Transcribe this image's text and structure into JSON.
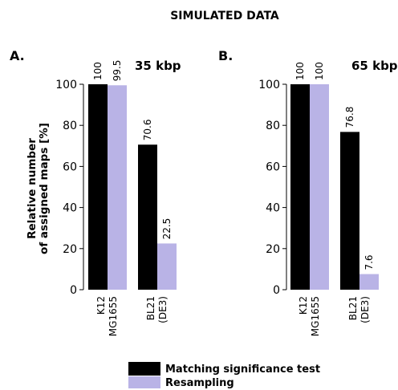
{
  "title": "SIMULATED DATA",
  "ylabel_line1": "Relative number",
  "ylabel_line2": "of assigned maps [%]",
  "colors": {
    "matching": "#000000",
    "resampling": "#b9b3e6"
  },
  "legend": [
    {
      "label": "Matching significance test",
      "color": "#000000"
    },
    {
      "label": "Resampling",
      "color": "#b9b3e6"
    }
  ],
  "chart_data": [
    {
      "type": "bar",
      "panel": "A.",
      "subtitle": "35 kbp",
      "categories": [
        [
          "K12",
          "MG1655"
        ],
        [
          "BL21",
          "(DE3)"
        ]
      ],
      "series": [
        {
          "name": "Matching significance test",
          "values": [
            100,
            70.6
          ]
        },
        {
          "name": "Resampling",
          "values": [
            99.5,
            22.5
          ]
        }
      ],
      "value_labels": [
        [
          "100",
          "70.6"
        ],
        [
          "99.5",
          "22.5"
        ]
      ],
      "ylim": [
        0,
        100
      ],
      "yticks": [
        0,
        20,
        40,
        60,
        80,
        100
      ],
      "ylabel": "Relative number of assigned maps [%]",
      "grid": false
    },
    {
      "type": "bar",
      "panel": "B.",
      "subtitle": "65 kbp",
      "categories": [
        [
          "K12",
          "MG1655"
        ],
        [
          "BL21",
          "(DE3)"
        ]
      ],
      "series": [
        {
          "name": "Matching significance test",
          "values": [
            100,
            76.8
          ]
        },
        {
          "name": "Resampling",
          "values": [
            100,
            7.6
          ]
        }
      ],
      "value_labels": [
        [
          "100",
          "76.8"
        ],
        [
          "100",
          "7.6"
        ]
      ],
      "ylim": [
        0,
        100
      ],
      "yticks": [
        0,
        20,
        40,
        60,
        80,
        100
      ],
      "grid": false
    }
  ]
}
